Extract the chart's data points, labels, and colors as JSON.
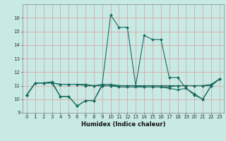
{
  "title": "",
  "xlabel": "Humidex (Indice chaleur)",
  "bg_color": "#c8eae4",
  "grid_color": "#dba8a8",
  "line_color": "#1a6b60",
  "xlim": [
    -0.5,
    23.5
  ],
  "ylim": [
    9,
    17
  ],
  "xticks": [
    0,
    1,
    2,
    3,
    4,
    5,
    6,
    7,
    8,
    9,
    10,
    11,
    12,
    13,
    14,
    15,
    16,
    17,
    18,
    19,
    20,
    21,
    22,
    23
  ],
  "yticks": [
    9,
    10,
    11,
    12,
    13,
    14,
    15,
    16
  ],
  "series": [
    [
      10.3,
      11.2,
      11.2,
      11.3,
      10.2,
      10.2,
      9.5,
      9.9,
      9.9,
      11.1,
      16.2,
      15.3,
      15.3,
      11.0,
      14.7,
      14.4,
      14.4,
      11.6,
      11.6,
      10.8,
      10.4,
      10.0,
      11.0,
      11.5
    ],
    [
      10.3,
      11.2,
      11.2,
      11.2,
      11.1,
      11.1,
      11.1,
      11.1,
      11.0,
      11.0,
      11.0,
      11.0,
      11.0,
      11.0,
      11.0,
      11.0,
      11.0,
      11.0,
      11.0,
      11.0,
      11.0,
      11.0,
      11.1,
      11.5
    ],
    [
      10.3,
      11.2,
      11.2,
      11.2,
      11.1,
      11.1,
      11.1,
      11.0,
      11.0,
      11.1,
      11.1,
      11.0,
      11.0,
      11.0,
      10.9,
      10.9,
      10.9,
      10.9,
      11.0,
      11.0,
      11.0,
      11.0,
      11.0,
      11.5
    ],
    [
      10.3,
      11.2,
      11.2,
      11.2,
      10.2,
      10.2,
      9.5,
      9.9,
      9.9,
      11.0,
      11.0,
      10.9,
      10.9,
      10.9,
      10.9,
      10.9,
      10.9,
      10.8,
      10.7,
      10.8,
      10.3,
      10.0,
      11.0,
      11.5
    ]
  ],
  "xlabel_fontsize": 6,
  "tick_fontsize": 5,
  "marker_size": 2.0,
  "linewidth": 0.8
}
